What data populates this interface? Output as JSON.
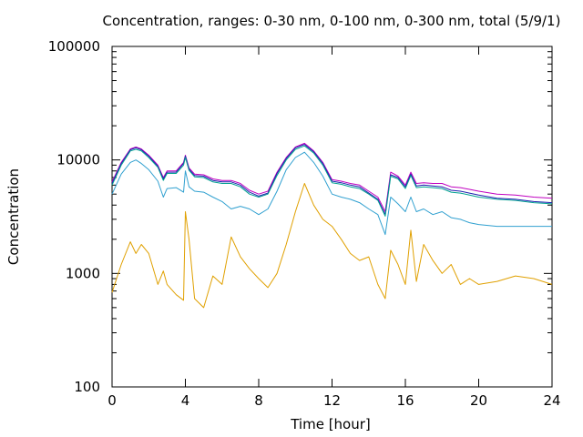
{
  "chart_data": {
    "type": "line",
    "title": "Concentration, ranges: 0-30 nm, 0-100 nm, 0-300 nm, total (5/9/1)",
    "xlabel": "Time [hour]",
    "ylabel": "Concentration",
    "xlim": [
      0,
      24
    ],
    "ylim": [
      100,
      100000
    ],
    "yscale": "log",
    "grid": false,
    "legend": "none",
    "x_ticks": [
      0,
      4,
      8,
      12,
      16,
      20,
      24
    ],
    "x_tick_labels": [
      "0",
      "4",
      "8",
      "12",
      "16",
      "20",
      "24"
    ],
    "y_ticks": [
      100,
      1000,
      10000,
      100000
    ],
    "y_tick_labels": [
      "100",
      "1000",
      "10000",
      "100000"
    ],
    "x": [
      0,
      0.5,
      1,
      1.3,
      1.6,
      2,
      2.5,
      2.8,
      3,
      3.5,
      3.9,
      4,
      4.2,
      4.5,
      5,
      5.5,
      6,
      6.5,
      7,
      7.5,
      8,
      8.5,
      9,
      9.5,
      10,
      10.5,
      11,
      11.5,
      12,
      12.5,
      13,
      13.5,
      14,
      14.5,
      14.9,
      15.2,
      15.6,
      16,
      16.3,
      16.6,
      17,
      17.5,
      18,
      18.5,
      19,
      19.5,
      20,
      21,
      22,
      23,
      24
    ],
    "series": [
      {
        "color": "#c000c0",
        "values": [
          6400,
          9500,
          12500,
          13000,
          12500,
          11000,
          9000,
          7000,
          8000,
          8000,
          9500,
          11000,
          8500,
          7500,
          7400,
          6800,
          6600,
          6600,
          6200,
          5400,
          5000,
          5300,
          7800,
          10500,
          13000,
          14000,
          12000,
          9500,
          6700,
          6500,
          6200,
          6000,
          5300,
          4700,
          3500,
          7800,
          7200,
          6000,
          7800,
          6200,
          6300,
          6200,
          6200,
          5800,
          5700,
          5500,
          5300,
          5000,
          4900,
          4700,
          4600
        ]
      },
      {
        "color": "#2020b0",
        "values": [
          6200,
          9300,
          12300,
          12800,
          12300,
          10800,
          8800,
          6800,
          7800,
          7800,
          9300,
          10800,
          8300,
          7300,
          7200,
          6600,
          6400,
          6400,
          6000,
          5200,
          4800,
          5100,
          7600,
          10300,
          12800,
          13700,
          11800,
          9300,
          6500,
          6300,
          6000,
          5800,
          5100,
          4500,
          3300,
          7400,
          7000,
          5800,
          7500,
          5900,
          6000,
          5900,
          5800,
          5400,
          5300,
          5100,
          4900,
          4600,
          4500,
          4300,
          4200
        ]
      },
      {
        "color": "#00a090",
        "values": [
          6000,
          9000,
          12000,
          12400,
          12000,
          10500,
          8600,
          6600,
          7600,
          7600,
          9000,
          10500,
          8100,
          7100,
          7000,
          6400,
          6200,
          6200,
          5800,
          5000,
          4700,
          5000,
          7300,
          10000,
          12400,
          13300,
          11500,
          9000,
          6300,
          6100,
          5800,
          5600,
          5000,
          4400,
          3200,
          7200,
          6800,
          5600,
          7300,
          5700,
          5800,
          5700,
          5600,
          5200,
          5100,
          4900,
          4700,
          4500,
          4400,
          4200,
          4100
        ]
      },
      {
        "color": "#30a0d0",
        "values": [
          5000,
          7500,
          9500,
          10000,
          9300,
          8200,
          6500,
          4700,
          5600,
          5700,
          5200,
          8000,
          5800,
          5300,
          5200,
          4700,
          4300,
          3700,
          3900,
          3700,
          3300,
          3700,
          5300,
          8200,
          10500,
          11700,
          9500,
          7200,
          5000,
          4700,
          4500,
          4200,
          3700,
          3300,
          2200,
          4700,
          4100,
          3500,
          4700,
          3500,
          3700,
          3300,
          3500,
          3100,
          3000,
          2800,
          2700,
          2600,
          2600,
          2600,
          2600
        ]
      },
      {
        "color": "#e0a000",
        "values": [
          680,
          1200,
          1900,
          1500,
          1800,
          1500,
          800,
          1050,
          800,
          650,
          580,
          3500,
          2000,
          600,
          500,
          950,
          800,
          2100,
          1400,
          1100,
          900,
          750,
          1000,
          1800,
          3500,
          6200,
          4000,
          3000,
          2600,
          2000,
          1500,
          1300,
          1400,
          800,
          600,
          1600,
          1200,
          800,
          2400,
          850,
          1800,
          1300,
          1000,
          1200,
          800,
          900,
          800,
          850,
          950,
          900,
          800
        ]
      }
    ]
  }
}
